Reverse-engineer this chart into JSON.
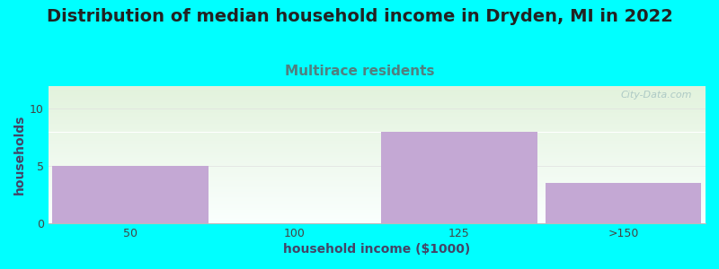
{
  "title": "Distribution of median household income in Dryden, MI in 2022",
  "subtitle": "Multirace residents",
  "xlabel": "household income ($1000)",
  "ylabel": "households",
  "categories": [
    "50",
    "100",
    "125",
    ">150"
  ],
  "values": [
    5,
    0,
    8,
    3.5
  ],
  "bar_color": "#C4A8D4",
  "bar_edge_color": "#C4A8D4",
  "background_color": "#00FFFF",
  "plot_bg_top": "#E2F2DC",
  "plot_bg_bottom": "#FAFFFE",
  "title_fontsize": 14,
  "subtitle_fontsize": 11,
  "subtitle_color": "#508080",
  "axis_label_fontsize": 10,
  "yticks": [
    0,
    5,
    10
  ],
  "ylim": [
    0,
    12
  ],
  "watermark": "City-Data.com",
  "watermark_color": "#A0BFBF"
}
